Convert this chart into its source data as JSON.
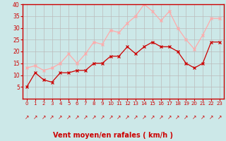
{
  "x": [
    0,
    1,
    2,
    3,
    4,
    5,
    6,
    7,
    8,
    9,
    10,
    11,
    12,
    13,
    14,
    15,
    16,
    17,
    18,
    19,
    20,
    21,
    22,
    23
  ],
  "wind_avg": [
    5,
    11,
    8,
    7,
    11,
    11,
    12,
    12,
    15,
    15,
    18,
    18,
    22,
    19,
    22,
    24,
    22,
    22,
    20,
    15,
    13,
    15,
    24,
    24
  ],
  "wind_gust": [
    13,
    14,
    12,
    13,
    15,
    19,
    15,
    19,
    24,
    23,
    29,
    28,
    32,
    35,
    40,
    37,
    33,
    37,
    30,
    25,
    21,
    27,
    34,
    34
  ],
  "avg_color": "#cc0000",
  "gust_color": "#ffaaaa",
  "bg_color": "#cce8e8",
  "grid_color": "#bbbbbb",
  "axis_color": "#cc0000",
  "ylim": [
    0,
    40
  ],
  "yticks": [
    5,
    10,
    15,
    20,
    25,
    30,
    35,
    40
  ],
  "xlabel": "Vent moyen/en rafales ( km/h )",
  "arrow_char": "↗"
}
